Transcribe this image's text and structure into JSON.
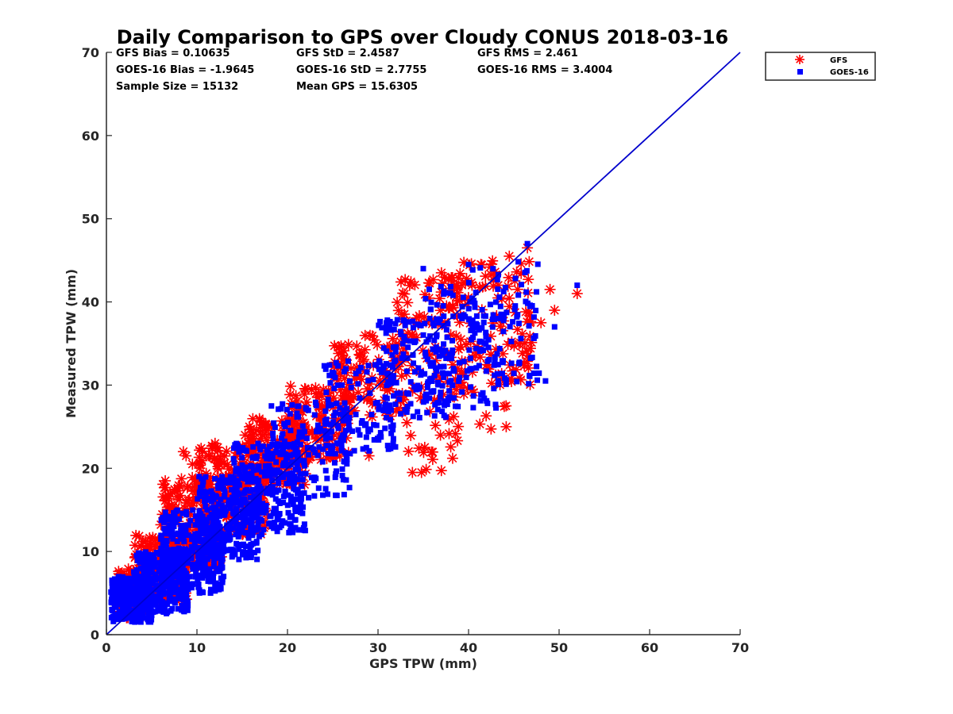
{
  "chart_data": {
    "type": "scatter",
    "title": "Daily Comparison to GPS over Cloudy CONUS 2018-03-16",
    "xlabel": "GPS TPW (mm)",
    "ylabel": "Measured TPW (mm)",
    "xlim": [
      0,
      70
    ],
    "ylim": [
      0,
      70
    ],
    "xticks": [
      "0",
      "10",
      "20",
      "30",
      "40",
      "50",
      "60",
      "70"
    ],
    "yticks": [
      "0",
      "10",
      "20",
      "30",
      "40",
      "50",
      "60",
      "70"
    ],
    "grid": false,
    "legend_position": "top-right-outside",
    "stats": [
      "GFS Bias = 0.10635",
      "GFS StD = 2.4587",
      "GFS RMS = 2.461",
      "GOES-16 Bias = -1.9645",
      "GOES-16 StD = 2.7755",
      "GOES-16 RMS = 3.4004",
      "Sample Size = 15132",
      "Mean GPS = 15.6305"
    ],
    "reference_line": {
      "x": [
        0,
        70
      ],
      "y": [
        0,
        70
      ],
      "color": "#0000cc"
    },
    "series": [
      {
        "name": "GFS",
        "marker": "asterisk",
        "color": "#ff0000",
        "clusters": [
          {
            "x": [
              1,
              5
            ],
            "y": [
              2,
              8
            ],
            "n": 90
          },
          {
            "x": [
              3,
              9
            ],
            "y": [
              4,
              12
            ],
            "n": 160
          },
          {
            "x": [
              6,
              13
            ],
            "y": [
              8,
              19
            ],
            "n": 200
          },
          {
            "x": [
              10,
              18
            ],
            "y": [
              12,
              23
            ],
            "n": 200
          },
          {
            "x": [
              15,
              22
            ],
            "y": [
              18,
              26
            ],
            "n": 160
          },
          {
            "x": [
              20,
              27
            ],
            "y": [
              21,
              30
            ],
            "n": 120
          },
          {
            "x": [
              25,
              33
            ],
            "y": [
              26,
              36
            ],
            "n": 110
          },
          {
            "x": [
              32,
              40
            ],
            "y": [
              28,
              43
            ],
            "n": 110
          },
          {
            "x": [
              38,
              47
            ],
            "y": [
              30,
              45
            ],
            "n": 110
          },
          {
            "x": [
              33,
              39
            ],
            "y": [
              19,
              27
            ],
            "n": 22
          },
          {
            "x": [
              39,
              45
            ],
            "y": [
              24,
              31
            ],
            "n": 14
          }
        ],
        "x": [
          6.5,
          8.5,
          8.8,
          12.0,
          12.3,
          9.5,
          7.2,
          46.5,
          44.5,
          52.0,
          49.0,
          49.5,
          48.0,
          33.8,
          34.8,
          29.0,
          26.5,
          37.0
        ],
        "y": [
          18.5,
          22.0,
          21.5,
          23.0,
          22.5,
          20.5,
          11.5,
          46.5,
          45.5,
          41.0,
          41.5,
          39.0,
          37.5,
          19.5,
          19.5,
          21.5,
          33.0,
          43.5
        ]
      },
      {
        "name": "GOES-16",
        "marker": "square",
        "color": "#0000ff",
        "clusters": [
          {
            "x": [
              0.5,
              5
            ],
            "y": [
              1.5,
              7
            ],
            "n": 260
          },
          {
            "x": [
              3,
              9
            ],
            "y": [
              2.5,
              10
            ],
            "n": 320
          },
          {
            "x": [
              6,
              13
            ],
            "y": [
              5,
              15
            ],
            "n": 340
          },
          {
            "x": [
              10,
              17
            ],
            "y": [
              9,
              19
            ],
            "n": 300
          },
          {
            "x": [
              14,
              22
            ],
            "y": [
              12,
              23
            ],
            "n": 240
          },
          {
            "x": [
              18,
              27
            ],
            "y": [
              16,
              28
            ],
            "n": 160
          },
          {
            "x": [
              24,
              32
            ],
            "y": [
              22,
              33
            ],
            "n": 120
          },
          {
            "x": [
              30,
              38
            ],
            "y": [
              26,
              38
            ],
            "n": 130
          },
          {
            "x": [
              35,
              44
            ],
            "y": [
              27,
              42
            ],
            "n": 140
          },
          {
            "x": [
              40,
              48
            ],
            "y": [
              30,
              45
            ],
            "n": 90
          }
        ],
        "x": [
          52.0,
          49.5,
          46.5,
          40.0,
          35.0,
          11.5,
          9.0,
          48.5
        ],
        "y": [
          42.0,
          37.0,
          47.0,
          44.5,
          44.0,
          5.0,
          3.5,
          30.5
        ]
      }
    ]
  }
}
